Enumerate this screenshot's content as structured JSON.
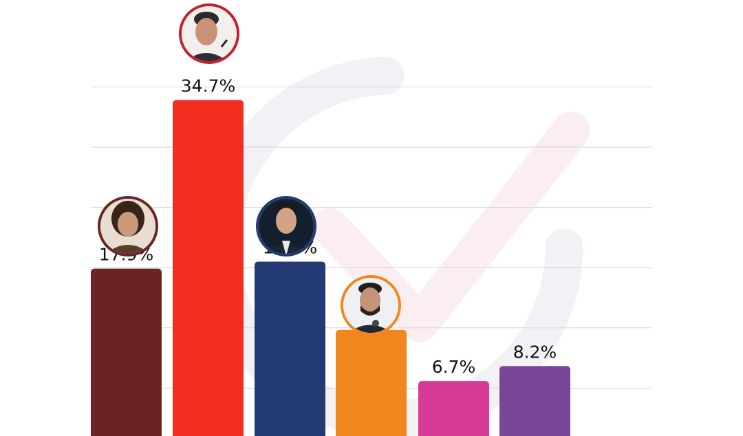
{
  "chart_data": {
    "type": "bar",
    "ylim": [
      0,
      40
    ],
    "grid": true,
    "series": [
      {
        "values": [
          17.9,
          34.7,
          18.6,
          11.8,
          6.7,
          8.2
        ],
        "value_labels": [
          "17.9%",
          "34.7%",
          "18.6%",
          "11.8%",
          "6.7%",
          "8.2%"
        ],
        "colors": [
          "#6b2424",
          "#f22e20",
          "#233a75",
          "#f2861e",
          "#d63a96",
          "#7a4698"
        ],
        "avatars": [
          {
            "icon": "avatar-woman-curly-hair-icon",
            "ring": "#6b2424"
          },
          {
            "icon": "avatar-man-microphone-icon",
            "ring": "#c4202b"
          },
          {
            "icon": "avatar-man-dark-suit-icon",
            "ring": "#233a75"
          },
          {
            "icon": "avatar-man-beard-microphone-icon",
            "ring": "#f2861e"
          },
          null,
          null
        ]
      }
    ],
    "colors": {
      "gridline": "#d4d4d4",
      "watermark": "#fbeef0",
      "watermark_dark": "#f3f0f6"
    }
  }
}
